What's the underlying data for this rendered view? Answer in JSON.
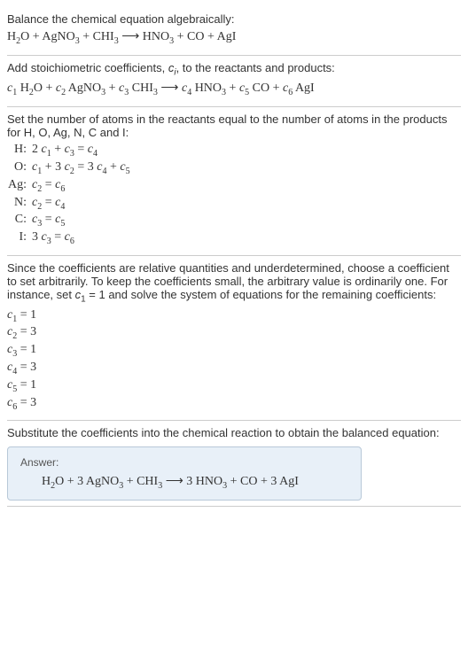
{
  "section1": {
    "text": "Balance the chemical equation algebraically:",
    "equation_parts": [
      "H",
      "2",
      "O + AgNO",
      "3",
      " + CHI",
      "3",
      "  ⟶  HNO",
      "3",
      " + CO + AgI"
    ]
  },
  "section2": {
    "text_parts": [
      "Add stoichiometric coefficients, ",
      "c",
      "i",
      ", to the reactants and products:"
    ],
    "equation_parts": [
      "c",
      "1",
      " H",
      "2",
      "O + ",
      "c",
      "2",
      " AgNO",
      "3",
      " + ",
      "c",
      "3",
      " CHI",
      "3",
      "  ⟶  ",
      "c",
      "4",
      " HNO",
      "3",
      " + ",
      "c",
      "5",
      " CO + ",
      "c",
      "6",
      " AgI"
    ]
  },
  "section3": {
    "text": "Set the number of atoms in the reactants equal to the number of atoms in the products for H, O, Ag, N, C and I:",
    "rows": [
      {
        "label": "H:",
        "eq_parts": [
          "2 ",
          "c",
          "1",
          " + ",
          "c",
          "3",
          " = ",
          "c",
          "4"
        ]
      },
      {
        "label": "O:",
        "eq_parts": [
          "c",
          "1",
          " + 3 ",
          "c",
          "2",
          " = 3 ",
          "c",
          "4",
          " + ",
          "c",
          "5"
        ]
      },
      {
        "label": "Ag:",
        "eq_parts": [
          "c",
          "2",
          " = ",
          "c",
          "6"
        ]
      },
      {
        "label": "N:",
        "eq_parts": [
          "c",
          "2",
          " = ",
          "c",
          "4"
        ]
      },
      {
        "label": "C:",
        "eq_parts": [
          "c",
          "3",
          " = ",
          "c",
          "5"
        ]
      },
      {
        "label": "I:",
        "eq_parts": [
          "3 ",
          "c",
          "3",
          " = ",
          "c",
          "6"
        ]
      }
    ]
  },
  "section4": {
    "text_parts": [
      "Since the coefficients are relative quantities and underdetermined, choose a coefficient to set arbitrarily. To keep the coefficients small, the arbitrary value is ordinarily one. For instance, set ",
      "c",
      "1",
      " = 1 and solve the system of equations for the remaining coefficients:"
    ],
    "coeffs": [
      {
        "parts": [
          "c",
          "1",
          " = 1"
        ]
      },
      {
        "parts": [
          "c",
          "2",
          " = 3"
        ]
      },
      {
        "parts": [
          "c",
          "3",
          " = 1"
        ]
      },
      {
        "parts": [
          "c",
          "4",
          " = 3"
        ]
      },
      {
        "parts": [
          "c",
          "5",
          " = 1"
        ]
      },
      {
        "parts": [
          "c",
          "6",
          " = 3"
        ]
      }
    ]
  },
  "section5": {
    "text": "Substitute the coefficients into the chemical reaction to obtain the balanced equation:",
    "answer_label": "Answer:",
    "answer_parts": [
      "H",
      "2",
      "O + 3 AgNO",
      "3",
      " + CHI",
      "3",
      "  ⟶  3 HNO",
      "3",
      " + CO + 3 AgI"
    ]
  },
  "colors": {
    "text": "#333333",
    "border": "#cccccc",
    "answer_bg": "#e8f0f8",
    "answer_border": "#b8c8d8",
    "answer_label": "#555555"
  }
}
